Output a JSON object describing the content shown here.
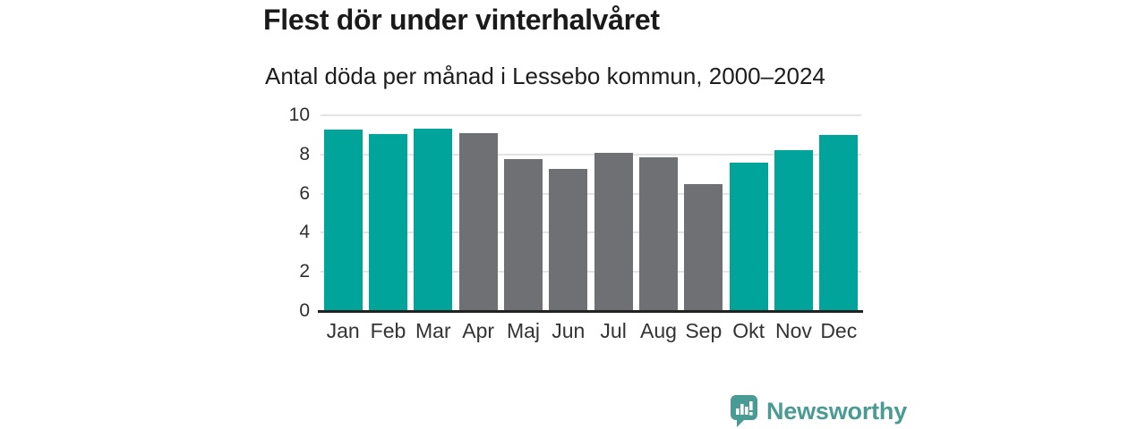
{
  "header": {
    "title": "Flest dör under vinterhalvåret",
    "subtitle": "Antal döda per månad i Lessebo kommun, 2000–2024"
  },
  "chart_data": {
    "type": "bar",
    "title": "Flest dör under vinterhalvåret",
    "subtitle": "Antal döda per månad i Lessebo kommun, 2000–2024",
    "categories": [
      "Jan",
      "Feb",
      "Mar",
      "Apr",
      "Maj",
      "Jun",
      "Jul",
      "Aug",
      "Sep",
      "Okt",
      "Nov",
      "Dec"
    ],
    "values": [
      9.25,
      9.05,
      9.3,
      9.1,
      7.75,
      7.25,
      8.1,
      7.85,
      6.5,
      7.6,
      8.2,
      9.0
    ],
    "bar_colors": [
      "teal",
      "teal",
      "teal",
      "gray",
      "gray",
      "gray",
      "gray",
      "gray",
      "gray",
      "teal",
      "teal",
      "teal"
    ],
    "palette": {
      "teal": "#00a49b",
      "gray": "#6e7073"
    },
    "yticks": [
      0,
      2,
      4,
      6,
      8,
      10
    ],
    "ylim": [
      0,
      10
    ],
    "xlabel": "",
    "ylabel": "",
    "grid": true,
    "legend": "none",
    "grid_color": "#e3e3e3",
    "axis_color": "#222222"
  },
  "branding": {
    "logo_text": "Newsworthy",
    "logo_color": "#4a9b93",
    "logo_icon": "bar-chart-speech-bubble"
  }
}
